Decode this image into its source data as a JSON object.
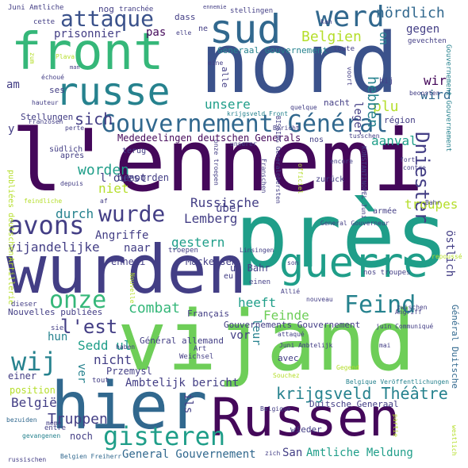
{
  "palette": {
    "deep_purple": "#44085a",
    "indigo": "#433e85",
    "blue": "#31688e",
    "teal": "#26828e",
    "sea": "#1f9e89",
    "green": "#35b779",
    "lime": "#6ece58",
    "yellow": "#b5de2b",
    "gold": "#fde725"
  },
  "words": [
    {
      "text": "l'ennemi",
      "color": "#44085a",
      "v": false
    },
    {
      "text": "près",
      "color": "#1f9e89",
      "v": false
    },
    {
      "text": "vijand",
      "color": "#6ece58",
      "v": false
    },
    {
      "text": "wurden",
      "color": "#433e85",
      "v": false
    },
    {
      "text": "nord",
      "color": "#3b528b",
      "v": false
    },
    {
      "text": "hier",
      "color": "#31688e",
      "v": false
    },
    {
      "text": "Russen",
      "color": "#44085a",
      "v": false
    },
    {
      "text": "front",
      "color": "#35b779",
      "v": false
    },
    {
      "text": "sud",
      "color": "#31688e",
      "v": false
    },
    {
      "text": "russe",
      "color": "#26828e",
      "v": false
    },
    {
      "text": "guerre",
      "color": "#1f9e89",
      "v": false
    },
    {
      "text": "Gouvernement Général",
      "color": "#31688e",
      "v": false
    },
    {
      "text": "attaque",
      "color": "#3b528b",
      "v": false
    },
    {
      "text": "werd",
      "color": "#31688e",
      "v": false
    },
    {
      "text": "avons",
      "color": "#433e85",
      "v": false
    },
    {
      "text": "wurde",
      "color": "#433e85",
      "v": false
    },
    {
      "text": "onze",
      "color": "#35b779",
      "v": false
    },
    {
      "text": "gisteren",
      "color": "#1f9e89",
      "v": false
    },
    {
      "text": "Feind",
      "color": "#26828e",
      "v": false
    },
    {
      "text": "wij",
      "color": "#26828e",
      "v": false
    },
    {
      "text": "l'est",
      "color": "#433e85",
      "v": false
    },
    {
      "text": "krijgsveld Théâtre",
      "color": "#26828e",
      "v": false
    },
    {
      "text": "Dniester",
      "color": "#433e85",
      "v": true
    },
    {
      "text": "Belgien",
      "color": "#b5de2b",
      "v": false
    },
    {
      "text": "nördlich",
      "color": "#31688e",
      "v": false
    },
    {
      "text": "sich",
      "color": "#433e85",
      "v": false
    },
    {
      "text": "worden",
      "color": "#1f9e89",
      "v": false
    },
    {
      "text": "niet",
      "color": "#b5de2b",
      "v": false
    },
    {
      "text": "Mededeelingen deutschen Generals",
      "color": "#44085a",
      "v": false
    },
    {
      "text": "Truppen",
      "color": "#433e85",
      "v": false
    },
    {
      "text": "Russische",
      "color": "#433e85",
      "v": false
    },
    {
      "text": "troupes",
      "color": "#b5de2b",
      "v": false
    },
    {
      "text": "durch",
      "color": "#26828e",
      "v": false
    },
    {
      "text": "über",
      "color": "#433e85",
      "v": false
    },
    {
      "text": "Lemberg",
      "color": "#433e85",
      "v": false
    },
    {
      "text": "gestern",
      "color": "#1f9e89",
      "v": false
    },
    {
      "text": "vijandelijke",
      "color": "#433e85",
      "v": false
    },
    {
      "text": "combat",
      "color": "#35b779",
      "v": false
    },
    {
      "text": "heeft",
      "color": "#1f9e89",
      "v": false
    },
    {
      "text": "Feinde",
      "color": "#6ece58",
      "v": false
    },
    {
      "text": "Sedd ul",
      "color": "#1f9e89",
      "v": false
    },
    {
      "text": "nicht",
      "color": "#433e85",
      "v": false
    },
    {
      "text": "Ambtelijk bericht",
      "color": "#433e85",
      "v": false
    },
    {
      "text": "België",
      "color": "#433e85",
      "v": false
    },
    {
      "text": "position",
      "color": "#b5de2b",
      "v": false
    },
    {
      "text": "General Gouvernement",
      "color": "#31688e",
      "v": false
    },
    {
      "text": "Amtliche Meldung",
      "color": "#1f9e89",
      "v": false
    },
    {
      "text": "San",
      "color": "#433e85",
      "v": false
    },
    {
      "text": "prisonnier",
      "color": "#433e85",
      "v": false
    },
    {
      "text": "pas",
      "color": "#44085a",
      "v": false
    },
    {
      "text": "am",
      "color": "#433e85",
      "v": false
    },
    {
      "text": "unsere",
      "color": "#1f9e89",
      "v": false
    },
    {
      "text": "plu",
      "color": "#b5de2b",
      "v": false
    },
    {
      "text": "hebben",
      "color": "#26828e",
      "v": true
    },
    {
      "text": "wir",
      "color": "#44085a",
      "v": false
    },
    {
      "text": "wird",
      "color": "#31688e",
      "v": false
    },
    {
      "text": "aanval",
      "color": "#1f9e89",
      "v": false
    },
    {
      "text": "leger",
      "color": "#433e85",
      "v": true
    },
    {
      "text": "östlich",
      "color": "#433e85",
      "v": true
    },
    {
      "text": "gegen",
      "color": "#433e85",
      "v": false
    },
    {
      "text": "on",
      "color": "#26828e",
      "v": true
    },
    {
      "text": "benoorden",
      "color": "#433e85",
      "v": false
    },
    {
      "text": "Angriffe",
      "color": "#433e85",
      "v": false
    },
    {
      "text": "naar",
      "color": "#433e85",
      "v": false
    },
    {
      "text": "ennemi",
      "color": "#433e85",
      "v": false
    },
    {
      "text": "Mackensen",
      "color": "#433e85",
      "v": false
    },
    {
      "text": "vor",
      "color": "#433e85",
      "v": false
    },
    {
      "text": "hun",
      "color": "#26828e",
      "v": false
    },
    {
      "text": "ver",
      "color": "#26828e",
      "v": true
    },
    {
      "text": "leur",
      "color": "#26828e",
      "v": true
    },
    {
      "text": "Przemysl",
      "color": "#433e85",
      "v": false
    },
    {
      "text": "noch",
      "color": "#433e85",
      "v": false
    },
    {
      "text": "y",
      "color": "#433e85",
      "v": false
    },
    {
      "text": "Nouvelles publiées",
      "color": "#433e85",
      "v": false
    },
    {
      "text": "Gouvernements Gouvernement",
      "color": "#433e85",
      "v": false
    },
    {
      "text": "Général allemand",
      "color": "#433e85",
      "v": false
    },
    {
      "text": "Duitsche Generaal",
      "color": "#433e85",
      "v": false
    },
    {
      "text": "Général Duitsche",
      "color": "#31688e",
      "v": true
    },
    {
      "text": "Français",
      "color": "#433e85",
      "v": false
    },
    {
      "text": "avec",
      "color": "#433e85",
      "v": false
    },
    {
      "text": "wieder",
      "color": "#433e85",
      "v": false
    },
    {
      "text": "dass",
      "color": "#433e85",
      "v": false
    },
    {
      "text": "stellingen",
      "color": "#433e85",
      "v": false
    },
    {
      "text": "tranchée",
      "color": "#433e85",
      "v": false
    },
    {
      "text": "nog",
      "color": "#433e85",
      "v": false
    },
    {
      "text": "zwischen",
      "color": "#433e85",
      "v": false
    },
    {
      "text": "Juni Amtliche",
      "color": "#433e85",
      "v": false
    },
    {
      "text": "Stellungen",
      "color": "#433e85",
      "v": false
    },
    {
      "text": "südlich",
      "color": "#433e85",
      "v": false
    },
    {
      "text": "nacht",
      "color": "#433e85",
      "v": false
    },
    {
      "text": "région",
      "color": "#433e85",
      "v": false
    },
    {
      "text": "Generaal Gouvernement",
      "color": "#26828e",
      "v": false
    },
    {
      "text": "toute",
      "color": "#433e85",
      "v": false
    },
    {
      "text": "gevechten",
      "color": "#433e85",
      "v": false
    },
    {
      "text": "cette",
      "color": "#433e85",
      "v": false
    },
    {
      "text": "hij",
      "color": "#433e85",
      "v": false
    },
    {
      "text": "beoosten",
      "color": "#433e85",
      "v": false
    },
    {
      "text": "nos",
      "color": "#433e85",
      "v": false
    },
    {
      "text": "zurück",
      "color": "#433e85",
      "v": false
    },
    {
      "text": "après",
      "color": "#433e85",
      "v": false
    },
    {
      "text": "terug",
      "color": "#433e85",
      "v": false
    },
    {
      "text": "l'ouest",
      "color": "#433e85",
      "v": false
    },
    {
      "text": "troepen",
      "color": "#433e85",
      "v": false
    },
    {
      "text": "ul Bahr",
      "color": "#433e85",
      "v": false
    },
    {
      "text": "Artillerie",
      "color": "#b5de2b",
      "v": true
    },
    {
      "text": "publiées deutschen",
      "color": "#b5de2b",
      "v": true
    },
    {
      "text": "eu",
      "color": "#433e85",
      "v": false
    },
    {
      "text": "einen",
      "color": "#433e85",
      "v": false
    },
    {
      "text": "nos troupes",
      "color": "#433e85",
      "v": false
    },
    {
      "text": "sie",
      "color": "#433e85",
      "v": false
    },
    {
      "text": "tout",
      "color": "#433e85",
      "v": false
    },
    {
      "text": "Art",
      "color": "#433e85",
      "v": false
    },
    {
      "text": "einer",
      "color": "#433e85",
      "v": false
    },
    {
      "text": "entre",
      "color": "#433e85",
      "v": false
    },
    {
      "text": "ils",
      "color": "#433e85",
      "v": false
    },
    {
      "text": "dieser",
      "color": "#433e85",
      "v": false
    },
    {
      "text": "Belgique",
      "color": "#433e85",
      "v": false
    },
    {
      "text": "Belgique Veröffentlichungen",
      "color": "#26828e",
      "v": false
    },
    {
      "text": "Gouvernement Gouvernement",
      "color": "#26828e",
      "v": true
    },
    {
      "text": "ses",
      "color": "#433e85",
      "v": false
    },
    {
      "text": "hauteur",
      "color": "#433e85",
      "v": false
    },
    {
      "text": "alle",
      "color": "#433e85",
      "v": true
    },
    {
      "text": "ne",
      "color": "#433e85",
      "v": false
    },
    {
      "text": "russischen",
      "color": "#433e85",
      "v": false
    },
    {
      "text": "Belgien Freiherr",
      "color": "#31688e",
      "v": false
    },
    {
      "text": "gevangenen",
      "color": "#26828e",
      "v": false
    },
    {
      "text": "bezuiden",
      "color": "#31688e",
      "v": false
    },
    {
      "text": "armée",
      "color": "#433e85",
      "v": false
    },
    {
      "text": "zich",
      "color": "#433e85",
      "v": false
    },
    {
      "text": "juin Communiqué",
      "color": "#433e85",
      "v": false
    },
    {
      "text": "Juni Ambtelijk",
      "color": "#433e85",
      "v": false
    },
    {
      "text": "General Gouverneur",
      "color": "#433e85",
      "v": false
    },
    {
      "text": "BISSING Generalobersten",
      "color": "#433e85",
      "v": true
    },
    {
      "text": "KONSTANTINOPEL Juni",
      "color": "#433e85",
      "v": true
    },
    {
      "text": "encore",
      "color": "#433e85",
      "v": false
    },
    {
      "text": "fort",
      "color": "#433e85",
      "v": false
    },
    {
      "text": "contre",
      "color": "#433e85",
      "v": false
    },
    {
      "text": "Bahr",
      "color": "#433e85",
      "v": false
    },
    {
      "text": "Linsingen",
      "color": "#433e85",
      "v": false
    },
    {
      "text": "repoussé",
      "color": "#b5de2b",
      "v": false
    },
    {
      "text": "nouveau",
      "color": "#433e85",
      "v": false
    },
    {
      "text": "Angriff",
      "color": "#433e85",
      "v": false
    },
    {
      "text": "mai",
      "color": "#433e85",
      "v": false
    },
    {
      "text": "attaqué",
      "color": "#433e85",
      "v": false
    },
    {
      "text": "Weichsel",
      "color": "#433e85",
      "v": false
    },
    {
      "text": "haben",
      "color": "#433e85",
      "v": false
    },
    {
      "text": "Gegend",
      "color": "#b5de2b",
      "v": false
    },
    {
      "text": "Souchez",
      "color": "#b5de2b",
      "v": false
    },
    {
      "text": "même",
      "color": "#433e85",
      "v": false
    },
    {
      "text": "partie",
      "color": "#b5de2b",
      "v": true
    },
    {
      "text": "westlich",
      "color": "#b5de2b",
      "v": true
    },
    {
      "text": "kan",
      "color": "#433e85",
      "v": false
    },
    {
      "text": "ennemie",
      "color": "#433e85",
      "v": false
    },
    {
      "text": "elle",
      "color": "#433e85",
      "v": false
    },
    {
      "text": "zum",
      "color": "#b5de2b",
      "v": true
    },
    {
      "text": "Plava",
      "color": "#b5de2b",
      "v": false
    },
    {
      "text": "échoué",
      "color": "#433e85",
      "v": false
    },
    {
      "text": "man",
      "color": "#433e85",
      "v": false
    },
    {
      "text": "eine",
      "color": "#433e85",
      "v": false
    },
    {
      "text": "perte",
      "color": "#433e85",
      "v": false
    },
    {
      "text": "depuis",
      "color": "#433e85",
      "v": false
    },
    {
      "text": "feindliche",
      "color": "#b5de2b",
      "v": false
    },
    {
      "text": "Franzosen",
      "color": "#433e85",
      "v": false
    },
    {
      "text": "af",
      "color": "#433e85",
      "v": false
    },
    {
      "text": "Nouvelle",
      "color": "#b5de2b",
      "v": true
    },
    {
      "text": "son",
      "color": "#433e85",
      "v": false
    },
    {
      "text": "Allié",
      "color": "#433e85",
      "v": false
    },
    {
      "text": "onze troepen",
      "color": "#433e85",
      "v": true
    },
    {
      "text": "Franschen",
      "color": "#433e85",
      "v": true
    },
    {
      "text": "officiel",
      "color": "#b5de2b",
      "v": true
    },
    {
      "text": "quelque",
      "color": "#433e85",
      "v": false
    },
    {
      "text": "krijgsveld Front",
      "color": "#26828e",
      "v": false
    },
    {
      "text": "unserer",
      "color": "#433e85",
      "v": false
    },
    {
      "text": "tusschen",
      "color": "#433e85",
      "v": false
    },
    {
      "text": "voort",
      "color": "#433e85",
      "v": true
    },
    {
      "text": "Bericht",
      "color": "#433e85",
      "v": false
    }
  ]
}
